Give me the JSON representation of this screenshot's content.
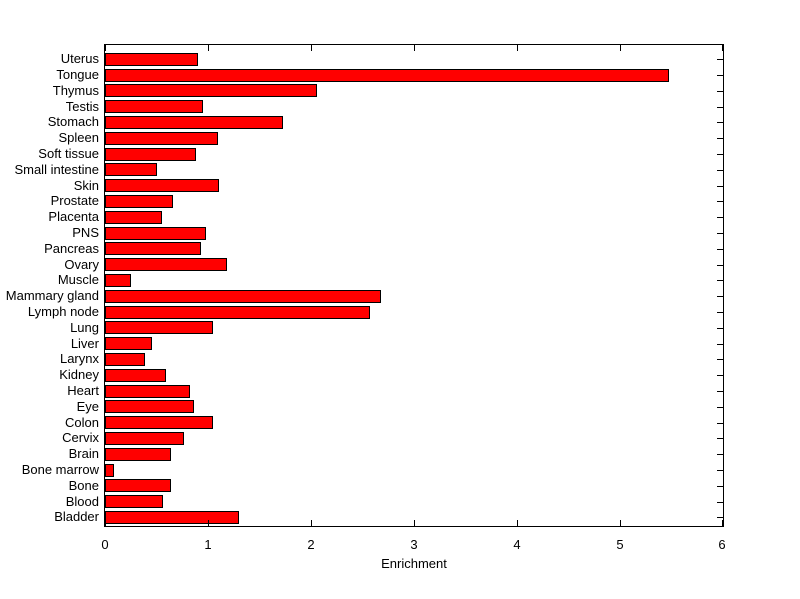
{
  "figure": {
    "background_color": "#ffffff",
    "axis_color": "#000000",
    "bar_fill_color": "#ff0000",
    "bar_edge_color": "#000000"
  },
  "chart_data": {
    "type": "bar",
    "orientation": "horizontal",
    "title": "",
    "xlabel": "Enrichment",
    "ylabel": "",
    "xlim": [
      0,
      6
    ],
    "xticks": [
      "0",
      "1",
      "2",
      "3",
      "4",
      "5",
      "6"
    ],
    "grid": false,
    "legend": null,
    "categories": [
      "Uterus",
      "Tongue",
      "Thymus",
      "Testis",
      "Stomach",
      "Spleen",
      "Soft tissue",
      "Small intestine",
      "Skin",
      "Prostate",
      "Placenta",
      "PNS",
      "Pancreas",
      "Ovary",
      "Muscle",
      "Mammary gland",
      "Lymph node",
      "Lung",
      "Liver",
      "Larynx",
      "Kidney",
      "Heart",
      "Eye",
      "Colon",
      "Cervix",
      "Brain",
      "Bone marrow",
      "Bone",
      "Blood",
      "Bladder"
    ],
    "values": [
      0.9,
      5.48,
      2.06,
      0.95,
      1.73,
      1.1,
      0.88,
      0.5,
      1.11,
      0.66,
      0.55,
      0.98,
      0.93,
      1.18,
      0.25,
      2.68,
      2.57,
      1.05,
      0.46,
      0.39,
      0.59,
      0.83,
      0.86,
      1.05,
      0.77,
      0.64,
      0.09,
      0.64,
      0.56,
      1.3
    ]
  }
}
